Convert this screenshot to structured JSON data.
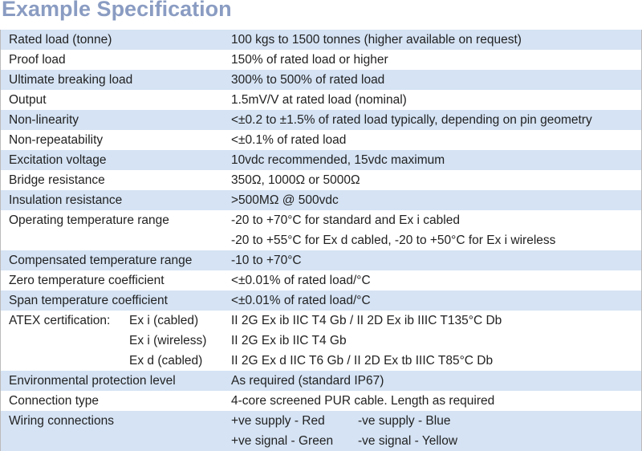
{
  "title": "Example Specification",
  "table": {
    "rows": [
      {
        "label": "Rated load (tonne)",
        "lines": [
          "100 kgs to 1500 tonnes (higher available on request)"
        ]
      },
      {
        "label": "Proof load",
        "lines": [
          "150% of rated load or higher"
        ]
      },
      {
        "label": "Ultimate breaking load",
        "lines": [
          "300% to 500% of rated load"
        ]
      },
      {
        "label": "Output",
        "lines": [
          "1.5mV/V at rated load (nominal)"
        ]
      },
      {
        "label": "Non-linearity",
        "lines": [
          "<±0.2 to ±1.5% of rated load typically, depending on pin geometry"
        ]
      },
      {
        "label": "Non-repeatability",
        "lines": [
          "<±0.1% of rated load"
        ]
      },
      {
        "label": "Excitation voltage",
        "lines": [
          "10vdc recommended, 15vdc maximum"
        ]
      },
      {
        "label": "Bridge resistance",
        "lines": [
          "350Ω, 1000Ω or 5000Ω"
        ]
      },
      {
        "label": "Insulation resistance",
        "lines": [
          ">500MΩ @ 500vdc"
        ]
      },
      {
        "label": "Operating temperature range",
        "lines": [
          "-20 to +70°C for standard and Ex i cabled",
          "-20 to +55°C for Ex d cabled, -20 to +50°C for Ex i wireless"
        ]
      },
      {
        "label": "Compensated temperature range",
        "lines": [
          "-10 to +70°C"
        ]
      },
      {
        "label": "Zero temperature coefficient",
        "lines": [
          "<±0.01% of rated load/°C"
        ]
      },
      {
        "label": "Span temperature coefficient",
        "lines": [
          "<±0.01% of rated load/°C"
        ]
      },
      {
        "label": "ATEX certification:",
        "sublabels": [
          "Ex i (cabled)",
          "Ex i (wireless)",
          "Ex d (cabled)"
        ],
        "lines": [
          "II 2G Ex ib IIC T4 Gb  / II 2D Ex ib IIIC T135°C Db",
          "II 2G Ex ib IIC T4 Gb",
          "II 2G Ex d IIC T6 Gb / II 2D Ex tb IIIC T85°C Db"
        ]
      },
      {
        "label": "Environmental protection level",
        "lines": [
          "As required (standard IP67)"
        ]
      },
      {
        "label": "Connection type",
        "lines": [
          "4-core screened PUR cable. Length as required"
        ]
      },
      {
        "label": "Wiring connections",
        "lines": [
          [
            "+ve supply - Red",
            "-ve supply - Blue"
          ],
          [
            "+ve signal - Green",
            "-ve signal - Yellow"
          ]
        ]
      }
    ]
  }
}
